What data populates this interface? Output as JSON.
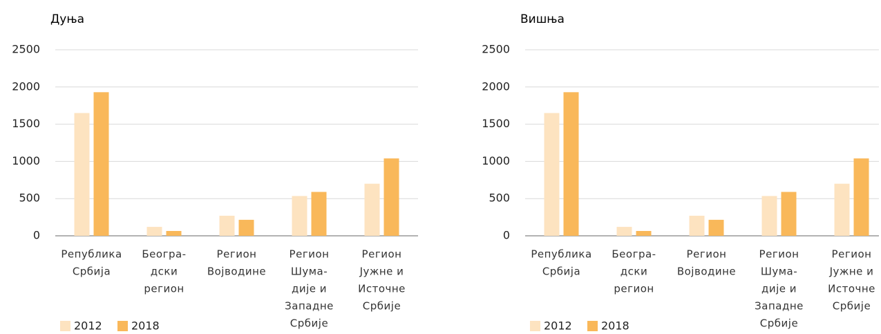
{
  "chart_data": [
    {
      "type": "bar",
      "title": "Дуња",
      "categories": [
        [
          "Република",
          "Србија"
        ],
        [
          "Београ-",
          "дски",
          "регион"
        ],
        [
          "Регион",
          "Војводине"
        ],
        [
          "Регион",
          "Шума-",
          "дије и",
          "Западне",
          "Србије"
        ],
        [
          "Регион",
          "Јужне и",
          "Источне",
          "Србије"
        ]
      ],
      "series": [
        {
          "name": "2012",
          "color": "#fde3c0",
          "values": [
            1650,
            120,
            270,
            535,
            700
          ]
        },
        {
          "name": "2018",
          "color": "#f9b85a",
          "values": [
            1930,
            65,
            215,
            590,
            1040
          ]
        }
      ],
      "ylim": [
        0,
        2500
      ],
      "yticks": [
        0,
        500,
        1000,
        1500,
        2000,
        2500
      ],
      "grid": true,
      "legend": "bottom-left"
    },
    {
      "type": "bar",
      "title": "Вишња",
      "categories": [
        [
          "Република",
          "Србија"
        ],
        [
          "Београ-",
          "дски",
          "регион"
        ],
        [
          "Регион",
          "Војводине"
        ],
        [
          "Регион",
          "Шума-",
          "дије и",
          "Западне",
          "Србије"
        ],
        [
          "Регион",
          "Јужне и",
          "Источне",
          "Србије"
        ]
      ],
      "series": [
        {
          "name": "2012",
          "color": "#fde3c0",
          "values": [
            1650,
            120,
            270,
            535,
            700
          ]
        },
        {
          "name": "2018",
          "color": "#f9b85a",
          "values": [
            1930,
            65,
            215,
            590,
            1040
          ]
        }
      ],
      "ylim": [
        0,
        2500
      ],
      "yticks": [
        0,
        500,
        1000,
        1500,
        2000,
        2500
      ],
      "grid": true,
      "legend": "bottom-left"
    }
  ]
}
